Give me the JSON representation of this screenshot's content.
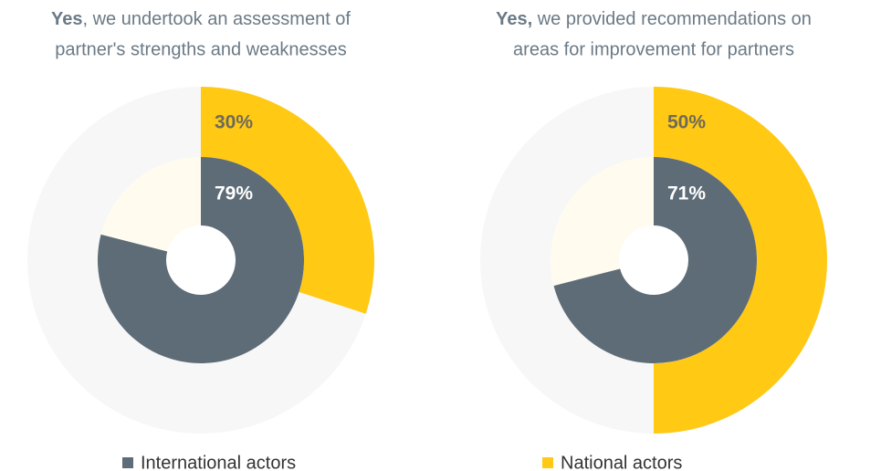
{
  "chart_data": [
    {
      "type": "pie",
      "title_bold": "Yes",
      "title_lines": [
        ", we undertook an assessment of",
        "partner's strengths and weaknesses"
      ],
      "series": [
        {
          "name": "National actors",
          "color": "#ffc914",
          "values": [
            30
          ],
          "value_labels": [
            "30%"
          ]
        },
        {
          "name": "International actors",
          "color": "#5e6c77",
          "values": [
            79
          ],
          "value_labels": [
            "79%"
          ]
        }
      ]
    },
    {
      "type": "pie",
      "title_bold": "Yes,",
      "title_lines": [
        " we provided recommendations on",
        "areas for improvement for partners"
      ],
      "series": [
        {
          "name": "National actors",
          "color": "#ffc914",
          "values": [
            50
          ],
          "value_labels": [
            "50%"
          ]
        },
        {
          "name": "International actors",
          "color": "#5e6c77",
          "values": [
            71
          ],
          "value_labels": [
            "71%"
          ]
        }
      ]
    }
  ]
}
